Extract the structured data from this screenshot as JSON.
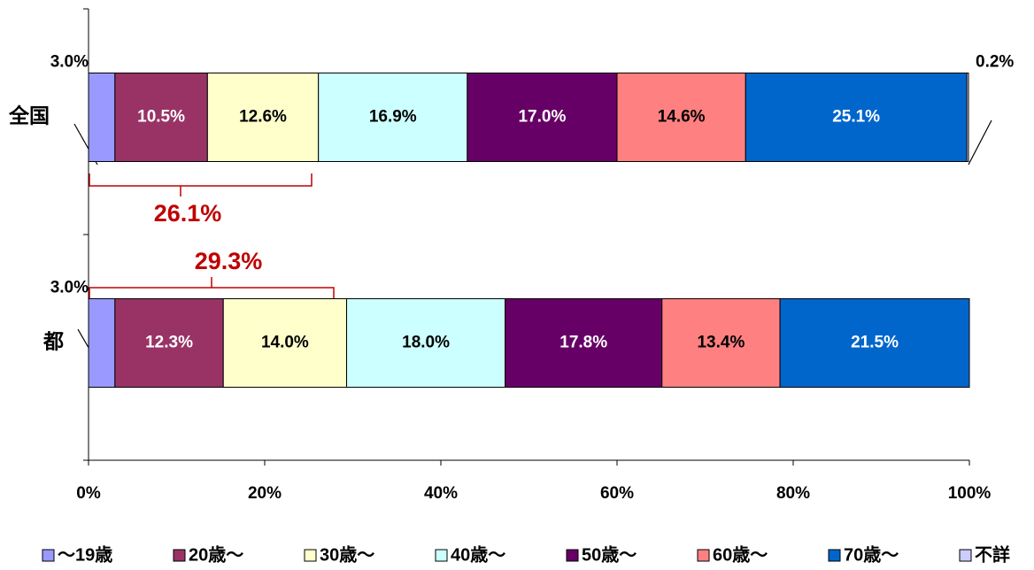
{
  "chart_data": {
    "type": "stacked-bar-horizontal",
    "categories": [
      "全国",
      "都"
    ],
    "series": [
      {
        "name": "～19歳",
        "color": "#9999ff",
        "values": [
          3.0,
          3.0
        ],
        "value_labels": [
          "3.0%",
          "3.0%"
        ]
      },
      {
        "name": "20歳～",
        "color": "#993366",
        "values": [
          10.5,
          12.3
        ],
        "value_labels": [
          "10.5%",
          "12.3%"
        ]
      },
      {
        "name": "30歳～",
        "color": "#ffffcc",
        "values": [
          12.6,
          14.0
        ],
        "value_labels": [
          "12.6%",
          "14.0%"
        ]
      },
      {
        "name": "40歳～",
        "color": "#ccffff",
        "values": [
          16.9,
          18.0
        ],
        "value_labels": [
          "16.9%",
          "18.0%"
        ]
      },
      {
        "name": "50歳～",
        "color": "#660066",
        "values": [
          17.0,
          17.8
        ],
        "value_labels": [
          "17.0%",
          "17.8%"
        ]
      },
      {
        "name": "60歳～",
        "color": "#ff8080",
        "values": [
          14.6,
          13.4
        ],
        "value_labels": [
          "14.6%",
          "13.4%"
        ]
      },
      {
        "name": "70歳～",
        "color": "#0066cc",
        "values": [
          25.1,
          21.5
        ],
        "value_labels": [
          "25.1%",
          "21.5%"
        ]
      },
      {
        "name": "不詳",
        "color": "#ccccff",
        "values": [
          0.2,
          0
        ],
        "value_labels": [
          "0.2%",
          null
        ]
      }
    ],
    "xlim": [
      0,
      100
    ],
    "xticks": [
      {
        "value": 0,
        "label": "0%"
      },
      {
        "value": 20,
        "label": "20%"
      },
      {
        "value": 40,
        "label": "40%"
      },
      {
        "value": 60,
        "label": "60%"
      },
      {
        "value": 80,
        "label": "80%"
      },
      {
        "value": 100,
        "label": "100%"
      }
    ],
    "annotations": [
      "26.1%",
      "29.3%"
    ],
    "legend": "bottom"
  }
}
